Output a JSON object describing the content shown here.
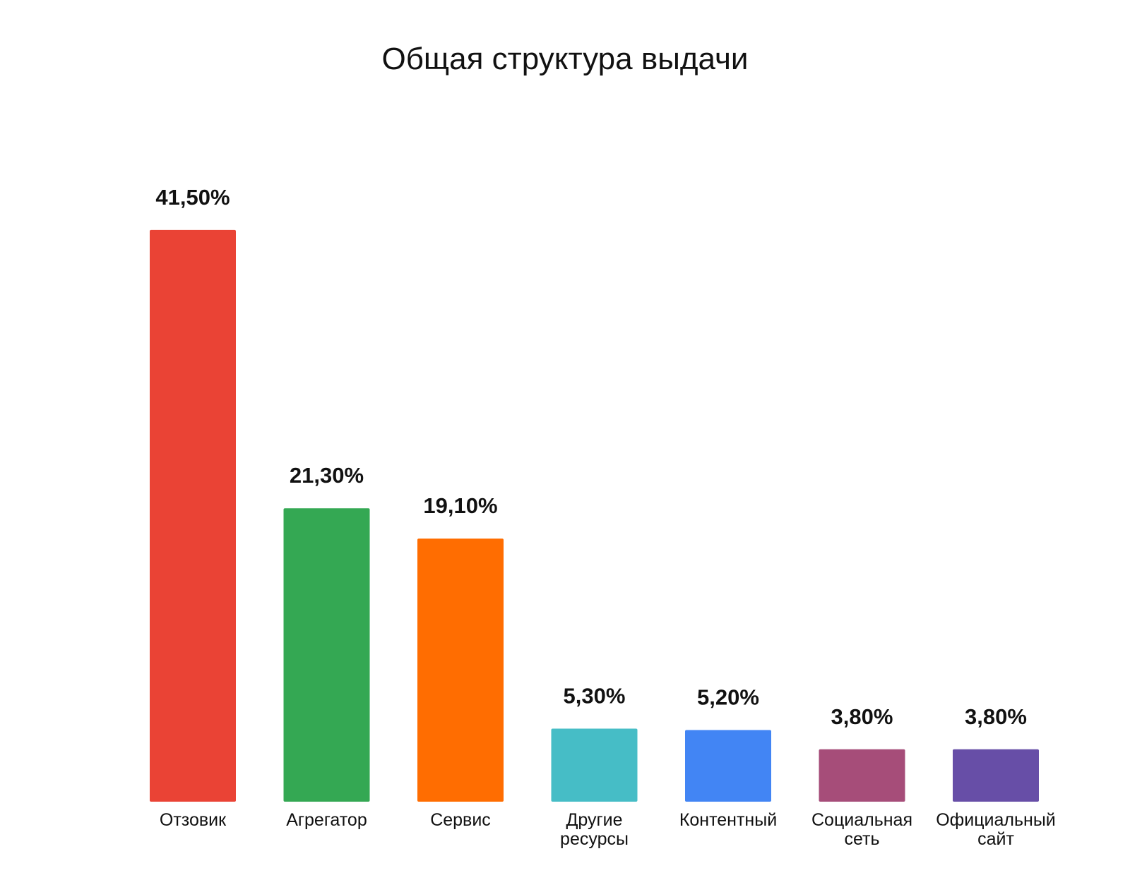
{
  "chart_data": {
    "type": "bar",
    "title": "Общая структура выдачи",
    "xlabel": "",
    "ylabel": "",
    "grid": false,
    "legend": "none",
    "ylim": [
      0,
      45
    ],
    "categories": [
      [
        "Отзовик"
      ],
      [
        "Агрегатор"
      ],
      [
        "Сервис"
      ],
      [
        "Другие",
        "ресурсы"
      ],
      [
        "Контентный"
      ],
      [
        "Социальная",
        "сеть"
      ],
      [
        "Официальный",
        "сайт"
      ]
    ],
    "values": [
      41.5,
      21.3,
      19.1,
      5.3,
      5.2,
      3.8,
      3.8
    ],
    "value_labels": [
      "41,50%",
      "21,30%",
      "19,10%",
      "5,30%",
      "5,20%",
      "3,80%",
      "3,80%"
    ],
    "colors": [
      "#ea4335",
      "#34a853",
      "#ff6d01",
      "#46bdc6",
      "#4285f4",
      "#a64d79",
      "#674ea7"
    ]
  }
}
